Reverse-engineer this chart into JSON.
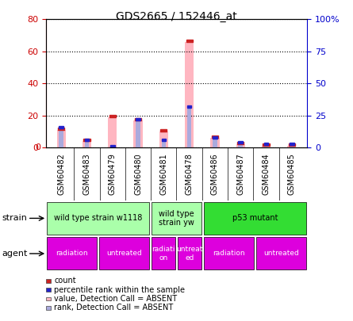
{
  "title": "GDS2665 / 152446_at",
  "samples": [
    "GSM60482",
    "GSM60483",
    "GSM60479",
    "GSM60480",
    "GSM60481",
    "GSM60478",
    "GSM60486",
    "GSM60487",
    "GSM60484",
    "GSM60485"
  ],
  "pink_bars": [
    11,
    4,
    19,
    17,
    10,
    66,
    6,
    2,
    1,
    1
  ],
  "blue_bars": [
    15,
    5,
    0,
    21,
    5,
    31,
    7,
    3,
    2,
    2
  ],
  "left_ylim": [
    0,
    80
  ],
  "right_ylim": [
    0,
    100
  ],
  "left_yticks": [
    0,
    20,
    40,
    60,
    80
  ],
  "right_yticks": [
    0,
    25,
    50,
    75,
    100
  ],
  "right_yticklabels": [
    "0",
    "25",
    "50",
    "75",
    "100%"
  ],
  "left_color": "#cc0000",
  "right_color": "#0000cc",
  "bar_pink": "#ffb6c1",
  "bar_blue": "#aaaadd",
  "dot_red": "#cc2222",
  "dot_blue": "#2222cc",
  "strain_groups": [
    {
      "label": "wild type strain w1118",
      "start": 0,
      "end": 4,
      "color": "#aaffaa"
    },
    {
      "label": "wild type\nstrain yw",
      "start": 4,
      "end": 6,
      "color": "#aaffaa"
    },
    {
      "label": "p53 mutant",
      "start": 6,
      "end": 10,
      "color": "#33dd33"
    }
  ],
  "agent_groups": [
    {
      "label": "radiation",
      "start": 0,
      "end": 2,
      "color": "#dd00dd"
    },
    {
      "label": "untreated",
      "start": 2,
      "end": 4,
      "color": "#dd00dd"
    },
    {
      "label": "radiati\non",
      "start": 4,
      "end": 5,
      "color": "#dd00dd"
    },
    {
      "label": "untreat\ned",
      "start": 5,
      "end": 6,
      "color": "#dd00dd"
    },
    {
      "label": "radiation",
      "start": 6,
      "end": 8,
      "color": "#dd00dd"
    },
    {
      "label": "untreated",
      "start": 8,
      "end": 10,
      "color": "#dd00dd"
    }
  ],
  "legend_items": [
    {
      "color": "#cc2222",
      "label": "count"
    },
    {
      "color": "#2222cc",
      "label": "percentile rank within the sample"
    },
    {
      "color": "#ffb6c1",
      "label": "value, Detection Call = ABSENT"
    },
    {
      "color": "#aaaadd",
      "label": "rank, Detection Call = ABSENT"
    }
  ],
  "xtick_bg": "#cccccc",
  "plot_bg": "#ffffff",
  "strain_bg": "#dddddd"
}
